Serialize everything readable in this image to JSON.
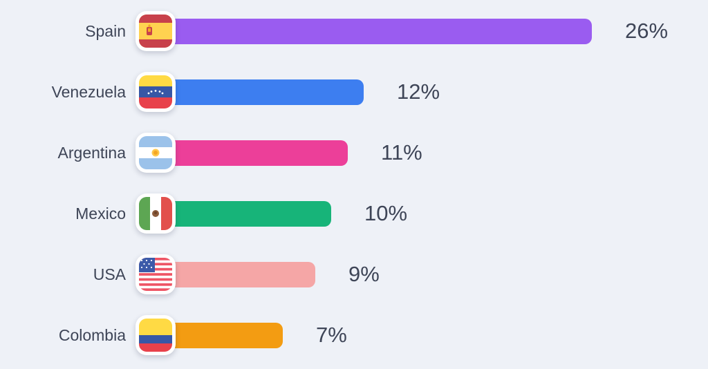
{
  "page": {
    "background_color": "#eef1f7",
    "text_color": "#3e4557"
  },
  "chart_data": {
    "type": "bar",
    "orientation": "horizontal",
    "title": "",
    "xlabel": "",
    "ylabel": "",
    "xlim": [
      0,
      26
    ],
    "grid": false,
    "legend": false,
    "categories": [
      "Spain",
      "Venezuela",
      "Argentina",
      "Mexico",
      "USA",
      "Colombia"
    ],
    "values": [
      26,
      12,
      11,
      10,
      9,
      7
    ],
    "value_labels": [
      "26%",
      "12%",
      "11%",
      "10%",
      "9%",
      "7%"
    ],
    "bar_colors": [
      "#9a5cf0",
      "#3d7ef0",
      "#ec3f99",
      "#17b479",
      "#f5a6a6",
      "#f39c12"
    ],
    "icons": [
      "spain-flag-icon",
      "venezuela-flag-icon",
      "argentina-flag-icon",
      "mexico-flag-icon",
      "usa-flag-icon",
      "colombia-flag-icon"
    ]
  },
  "rows": [
    {
      "label": "Spain",
      "value": 26,
      "value_label": "26%",
      "color": "#9a5cf0",
      "icon": "spain-flag-icon"
    },
    {
      "label": "Venezuela",
      "value": 12,
      "value_label": "12%",
      "color": "#3d7ef0",
      "icon": "venezuela-flag-icon"
    },
    {
      "label": "Argentina",
      "value": 11,
      "value_label": "11%",
      "color": "#ec3f99",
      "icon": "argentina-flag-icon"
    },
    {
      "label": "Mexico",
      "value": 10,
      "value_label": "10%",
      "color": "#17b479",
      "icon": "mexico-flag-icon"
    },
    {
      "label": "USA",
      "value": 9,
      "value_label": "9%",
      "color": "#f5a6a6",
      "icon": "usa-flag-icon"
    },
    {
      "label": "Colombia",
      "value": 7,
      "value_label": "7%",
      "color": "#f39c12",
      "icon": "colombia-flag-icon"
    }
  ]
}
